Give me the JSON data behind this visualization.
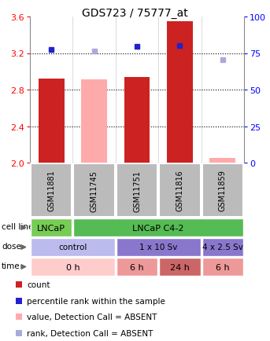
{
  "title": "GDS723 / 75777_at",
  "samples": [
    "GSM11881",
    "GSM11745",
    "GSM11751",
    "GSM11816",
    "GSM11859"
  ],
  "ylim_left": [
    2.0,
    3.6
  ],
  "ylim_right": [
    0,
    100
  ],
  "yticks_left": [
    2.0,
    2.4,
    2.8,
    3.2,
    3.6
  ],
  "yticks_right": [
    0,
    25,
    50,
    75,
    100
  ],
  "bar_values": [
    2.92,
    2.91,
    2.94,
    3.55,
    2.05
  ],
  "bar_colors": [
    "#cc2222",
    "#ffaaaa",
    "#cc2222",
    "#cc2222",
    "#ffaaaa"
  ],
  "dot_values_left": [
    3.24,
    3.22,
    3.27,
    3.28,
    3.13
  ],
  "dot_colors": [
    "#2222cc",
    "#aaaadd",
    "#2222cc",
    "#2222cc",
    "#aaaadd"
  ],
  "cell_line_groups": [
    {
      "label": "LNCaP",
      "start": 0,
      "end": 1,
      "color": "#77cc55"
    },
    {
      "label": "LNCaP C4-2",
      "start": 1,
      "end": 5,
      "color": "#55bb55"
    }
  ],
  "dose_groups": [
    {
      "label": "control",
      "start": 0,
      "end": 2,
      "color": "#bbbbee"
    },
    {
      "label": "1 x 10 Sv",
      "start": 2,
      "end": 4,
      "color": "#8877cc"
    },
    {
      "label": "4 x 2.5 Sv",
      "start": 4,
      "end": 5,
      "color": "#8877cc"
    }
  ],
  "time_groups": [
    {
      "label": "0 h",
      "start": 0,
      "end": 2,
      "color": "#ffcccc"
    },
    {
      "label": "6 h",
      "start": 2,
      "end": 3,
      "color": "#ee9999"
    },
    {
      "label": "24 h",
      "start": 3,
      "end": 4,
      "color": "#cc6666"
    },
    {
      "label": "6 h",
      "start": 4,
      "end": 5,
      "color": "#ee9999"
    }
  ],
  "legend_items": [
    {
      "color": "#cc2222",
      "label": "count"
    },
    {
      "color": "#2222cc",
      "label": "percentile rank within the sample"
    },
    {
      "color": "#ffaaaa",
      "label": "value, Detection Call = ABSENT"
    },
    {
      "color": "#aaaadd",
      "label": "rank, Detection Call = ABSENT"
    }
  ],
  "sample_bg_color": "#bbbbbb",
  "bar_bottom": 2.0,
  "fig_width": 3.43,
  "fig_height": 4.35,
  "dpi": 100
}
